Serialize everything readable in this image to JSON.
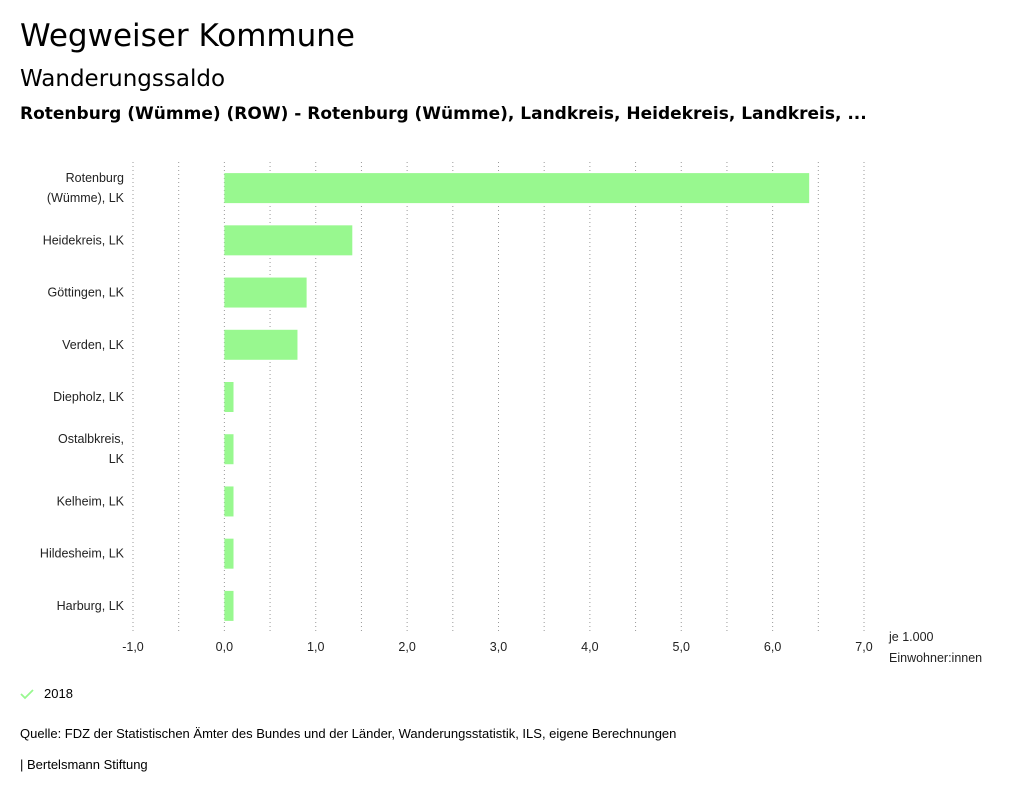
{
  "header": {
    "title": "Wegweiser Kommune",
    "subtitle": "Wanderungssaldo",
    "region": "Rotenburg (Wümme) (ROW) - Rotenburg (Wümme), Landkreis, Heidekreis, Landkreis, ..."
  },
  "chart_data": {
    "type": "bar",
    "orientation": "horizontal",
    "categories": [
      "Rotenburg (Wümme), LK",
      "Heidekreis, LK",
      "Göttingen, LK",
      "Verden, LK",
      "Diepholz, LK",
      "Ostalbkreis, LK",
      "Kelheim, LK",
      "Hildesheim, LK",
      "Harburg, LK"
    ],
    "category_lines": [
      [
        "Rotenburg",
        "(Wümme), LK"
      ],
      [
        "Heidekreis, LK"
      ],
      [
        "Göttingen, LK"
      ],
      [
        "Verden, LK"
      ],
      [
        "Diepholz, LK"
      ],
      [
        "Ostalbkreis,",
        "LK"
      ],
      [
        "Kelheim, LK"
      ],
      [
        "Hildesheim, LK"
      ],
      [
        "Harburg, LK"
      ]
    ],
    "series": [
      {
        "name": "2018",
        "color": "#98f88f",
        "values": [
          6.4,
          1.4,
          0.9,
          0.8,
          0.1,
          0.1,
          0.1,
          0.1,
          0.1
        ]
      }
    ],
    "xlim": [
      -1.0,
      7.0
    ],
    "xticks": [
      -1.0,
      0.0,
      1.0,
      2.0,
      3.0,
      4.0,
      5.0,
      6.0,
      7.0
    ],
    "xtick_labels": [
      "-1,0",
      "0,0",
      "1,0",
      "2,0",
      "3,0",
      "4,0",
      "5,0",
      "6,0",
      "7,0"
    ],
    "xlabel_lines": [
      "je 1.000",
      "Einwohner:innen"
    ],
    "grid": "vertical dotted every 0.5"
  },
  "legend": {
    "label": "2018",
    "color": "#98f88f"
  },
  "source": "Quelle: FDZ der Statistischen Ämter des Bundes und der Länder, Wanderungsstatistik, ILS, eigene Berechnungen",
  "footer": "| Bertelsmann Stiftung"
}
